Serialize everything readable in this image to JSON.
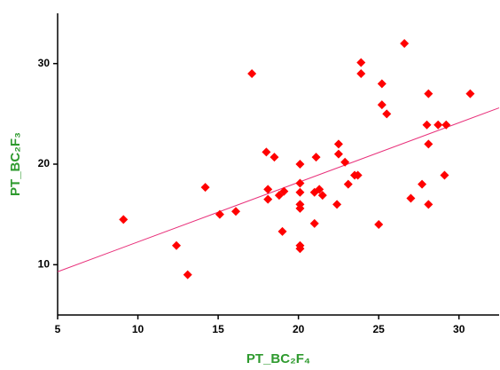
{
  "chart_data": {
    "type": "scatter",
    "xlabel": "PT_BC₂F₄",
    "ylabel": "PT_BC₂F₃",
    "x": [
      9.1,
      12.4,
      13.1,
      14.2,
      15.1,
      16.1,
      17.1,
      18.0,
      18.1,
      18.1,
      18.5,
      18.8,
      19.0,
      19.1,
      20.1,
      20.1,
      20.1,
      20.1,
      20.1,
      20.1,
      20.1,
      21.0,
      21.1,
      21.0,
      21.3,
      21.5,
      22.5,
      22.5,
      22.4,
      22.9,
      23.1,
      23.5,
      23.7,
      23.9,
      23.9,
      25.0,
      25.2,
      25.2,
      25.5,
      26.6,
      27.0,
      27.7,
      28.0,
      28.1,
      28.1,
      28.1,
      28.7,
      29.2,
      29.1,
      30.7
    ],
    "y": [
      14.5,
      11.9,
      9.0,
      17.7,
      15.0,
      15.3,
      29.0,
      21.2,
      17.5,
      16.5,
      20.7,
      16.9,
      13.3,
      17.3,
      20.0,
      18.1,
      17.2,
      16.0,
      15.6,
      11.9,
      11.6,
      14.1,
      20.7,
      17.2,
      17.5,
      16.9,
      22.0,
      21.0,
      16.0,
      20.2,
      18.0,
      18.9,
      18.9,
      30.1,
      29.0,
      14.0,
      28.0,
      25.9,
      25.0,
      32.0,
      16.6,
      18.0,
      23.9,
      27.0,
      22.0,
      16.0,
      23.9,
      23.9,
      18.9,
      27.0
    ],
    "color": "#ff0000",
    "fit": {
      "x": [
        5,
        32.5
      ],
      "y": [
        9.3,
        25.6
      ],
      "color": "#e8307a"
    },
    "xlim": [
      5,
      32.5
    ],
    "ylim": [
      5,
      35
    ],
    "xticks": [
      5,
      10,
      15,
      20,
      25,
      30
    ],
    "yticks": [
      10,
      20,
      30
    ],
    "grid": false
  }
}
